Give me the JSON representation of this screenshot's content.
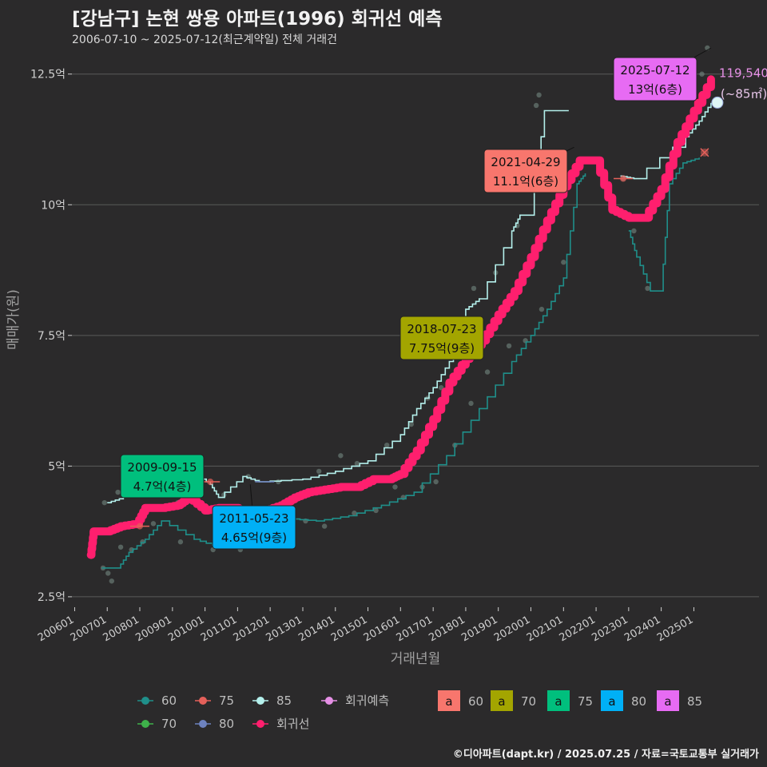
{
  "header": {
    "title": "[강남구] 논현 쌍용 아파트(1996) 회귀선 예측",
    "subtitle": "2006-07-10 ~ 2025-07-12(최근계약일) 전체 거래건"
  },
  "footer": {
    "credit": "©디아파트(dapt.kr) / 2025.07.25 / 자료=국토교통부 실거래가"
  },
  "colors": {
    "background": "#2b2a2b",
    "grid": "#5a5a5a",
    "text": "#d0d0d0",
    "s60": "#1f8f8a",
    "s70": "#3eb24a",
    "s75": "#e4605a",
    "s80": "#6d82bf",
    "s85": "#b4f0ec",
    "regression": "#ff1f6e",
    "forecast": "#e690e6",
    "lab60": "#f8766d",
    "lab70": "#a3a500",
    "lab75": "#00bf7d",
    "lab80": "#00b0f6",
    "lab85": "#e76bf3"
  },
  "chart_data": {
    "type": "line",
    "xlabel": "거래년월",
    "ylabel": "매매가(원)",
    "xlim": [
      "2005-12-01",
      "2027-01-01"
    ],
    "ylim": [
      2.3,
      13.0
    ],
    "y_ticks": [
      {
        "v": 2.5,
        "label": "2.5억"
      },
      {
        "v": 5,
        "label": "5억"
      },
      {
        "v": 7.5,
        "label": "7.5억"
      },
      {
        "v": 10,
        "label": "10억"
      },
      {
        "v": 12.5,
        "label": "12.5억"
      }
    ],
    "x_ticks": [
      {
        "d": "2006-01-01",
        "label": "200601"
      },
      {
        "d": "2007-01-01",
        "label": "200701"
      },
      {
        "d": "2008-01-01",
        "label": "200801"
      },
      {
        "d": "2009-01-01",
        "label": "200901"
      },
      {
        "d": "2010-01-01",
        "label": "201001"
      },
      {
        "d": "2011-01-01",
        "label": "201101"
      },
      {
        "d": "2012-01-01",
        "label": "201201"
      },
      {
        "d": "2013-01-01",
        "label": "201301"
      },
      {
        "d": "2014-01-01",
        "label": "201401"
      },
      {
        "d": "2015-01-01",
        "label": "201501"
      },
      {
        "d": "2016-01-01",
        "label": "201601"
      },
      {
        "d": "2017-01-01",
        "label": "201701"
      },
      {
        "d": "2018-01-01",
        "label": "201801"
      },
      {
        "d": "2019-01-01",
        "label": "201901"
      },
      {
        "d": "2020-01-01",
        "label": "202001"
      },
      {
        "d": "2021-01-01",
        "label": "202101"
      },
      {
        "d": "2022-01-01",
        "label": "202201"
      },
      {
        "d": "2023-01-01",
        "label": "202301"
      },
      {
        "d": "2024-01-01",
        "label": "202401"
      },
      {
        "d": "2025-01-01",
        "label": "202501"
      }
    ],
    "grid": true,
    "series": [
      {
        "key": "regression",
        "name": "회귀선",
        "points": [
          [
            "2006-07-01",
            3.3
          ],
          [
            "2006-08-01",
            3.75
          ],
          [
            "2007-01-01",
            3.75
          ],
          [
            "2007-06-01",
            3.85
          ],
          [
            "2007-12-01",
            3.9
          ],
          [
            "2008-03-01",
            4.2
          ],
          [
            "2008-09-01",
            4.2
          ],
          [
            "2009-03-01",
            4.25
          ],
          [
            "2009-07-01",
            4.4
          ],
          [
            "2010-01-01",
            4.15
          ],
          [
            "2010-06-01",
            4.2
          ],
          [
            "2010-12-01",
            4.2
          ],
          [
            "2011-06-01",
            3.9
          ],
          [
            "2011-11-01",
            4.15
          ],
          [
            "2012-05-01",
            4.25
          ],
          [
            "2012-10-01",
            4.4
          ],
          [
            "2013-03-01",
            4.5
          ],
          [
            "2013-09-01",
            4.55
          ],
          [
            "2014-03-01",
            4.6
          ],
          [
            "2014-09-01",
            4.6
          ],
          [
            "2015-03-01",
            4.75
          ],
          [
            "2015-09-01",
            4.75
          ],
          [
            "2016-01-01",
            4.85
          ],
          [
            "2016-07-01",
            5.3
          ],
          [
            "2017-01-01",
            5.9
          ],
          [
            "2017-07-01",
            6.6
          ],
          [
            "2018-01-01",
            7.05
          ],
          [
            "2018-07-01",
            7.4
          ],
          [
            "2019-01-01",
            7.9
          ],
          [
            "2019-07-01",
            8.35
          ],
          [
            "2020-01-01",
            9.0
          ],
          [
            "2020-07-01",
            9.7
          ],
          [
            "2021-01-01",
            10.35
          ],
          [
            "2021-07-01",
            10.85
          ],
          [
            "2022-01-01",
            10.85
          ],
          [
            "2022-07-01",
            9.9
          ],
          [
            "2023-01-01",
            9.75
          ],
          [
            "2023-07-01",
            9.75
          ],
          [
            "2024-01-01",
            10.3
          ],
          [
            "2024-07-01",
            11.2
          ],
          [
            "2025-01-01",
            11.8
          ],
          [
            "2025-07-12",
            12.4
          ]
        ]
      },
      {
        "key": "s60",
        "name": "60",
        "points": [
          [
            "2006-11-01",
            3.05
          ],
          [
            "2007-05-01",
            3.05
          ],
          [
            "2007-09-01",
            3.35
          ],
          [
            "2008-03-01",
            3.6
          ],
          [
            "2008-09-01",
            3.95
          ],
          [
            "2009-09-01",
            3.6
          ],
          [
            "2010-06-01",
            3.45
          ],
          [
            "2011-03-01",
            3.5
          ],
          [
            "2011-09-01",
            3.9
          ],
          [
            "2012-06-01",
            4.0
          ],
          [
            "2013-06-01",
            3.95
          ],
          [
            "2014-06-01",
            4.05
          ],
          [
            "2015-06-01",
            4.25
          ],
          [
            "2016-06-01",
            4.5
          ],
          [
            "2017-06-01",
            5.2
          ],
          [
            "2018-06-01",
            6.1
          ],
          [
            "2019-06-01",
            7.0
          ],
          [
            "2020-01-01",
            7.5
          ],
          [
            "2020-07-01",
            8.0
          ],
          [
            "2021-01-01",
            8.6
          ],
          [
            "2021-06-01",
            10.4
          ],
          [
            "2021-09-01",
            10.6
          ]
        ]
      },
      {
        "key": "s60b",
        "name": "60",
        "points": [
          [
            "2023-01-01",
            9.5
          ],
          [
            "2023-04-01",
            9.0
          ],
          [
            "2023-09-01",
            8.35
          ],
          [
            "2024-01-01",
            8.35
          ],
          [
            "2024-04-01",
            10.4
          ],
          [
            "2024-09-01",
            10.8
          ],
          [
            "2025-03-01",
            10.9
          ]
        ]
      },
      {
        "key": "s85",
        "name": "85",
        "points": [
          [
            "2007-01-01",
            4.3
          ],
          [
            "2007-07-01",
            4.4
          ],
          [
            "2008-01-01",
            4.55
          ],
          [
            "2008-07-01",
            4.85
          ],
          [
            "2009-03-01",
            5.0
          ],
          [
            "2009-09-01",
            4.85
          ],
          [
            "2010-03-01",
            4.65
          ],
          [
            "2010-06-01",
            4.4
          ],
          [
            "2011-03-01",
            4.8
          ],
          [
            "2011-09-01",
            4.7
          ],
          [
            "2013-01-01",
            4.75
          ],
          [
            "2014-01-01",
            4.9
          ],
          [
            "2015-01-01",
            5.1
          ],
          [
            "2016-01-01",
            5.6
          ],
          [
            "2016-07-01",
            6.1
          ],
          [
            "2017-01-01",
            6.5
          ],
          [
            "2017-07-01",
            7.0
          ],
          [
            "2018-01-01",
            8.0
          ],
          [
            "2018-06-01",
            8.2
          ],
          [
            "2019-06-01",
            9.5
          ],
          [
            "2019-09-01",
            9.8
          ],
          [
            "2020-01-01",
            9.8
          ],
          [
            "2020-06-01",
            11.8
          ],
          [
            "2021-03-01",
            11.8
          ]
        ]
      },
      {
        "key": "s85b",
        "name": "85",
        "points": [
          [
            "2022-10-01",
            10.55
          ],
          [
            "2023-03-01",
            10.5
          ],
          [
            "2024-10-01",
            11.3
          ],
          [
            "2025-03-01",
            11.6
          ],
          [
            "2025-07-12",
            11.95
          ]
        ]
      }
    ],
    "scatter": [
      [
        "2006-11-15",
        3.05
      ],
      [
        "2007-01-10",
        2.95
      ],
      [
        "2007-02-20",
        2.8
      ],
      [
        "2007-06-01",
        3.45
      ],
      [
        "2007-10-01",
        3.4
      ],
      [
        "2008-02-01",
        3.55
      ],
      [
        "2008-06-01",
        3.9
      ],
      [
        "2009-04-01",
        3.55
      ],
      [
        "2010-04-01",
        3.4
      ],
      [
        "2010-09-01",
        3.6
      ],
      [
        "2011-02-01",
        3.4
      ],
      [
        "2011-08-01",
        3.6
      ],
      [
        "2012-03-01",
        4.0
      ],
      [
        "2013-02-01",
        3.95
      ],
      [
        "2013-09-01",
        3.85
      ],
      [
        "2014-08-01",
        4.1
      ],
      [
        "2015-04-01",
        4.15
      ],
      [
        "2016-02-01",
        4.4
      ],
      [
        "2016-09-01",
        4.6
      ],
      [
        "2017-02-01",
        4.7
      ],
      [
        "2017-09-01",
        5.4
      ],
      [
        "2018-03-01",
        6.2
      ],
      [
        "2018-09-01",
        6.8
      ],
      [
        "2019-05-01",
        7.3
      ],
      [
        "2019-11-01",
        7.4
      ],
      [
        "2020-05-01",
        8.0
      ],
      [
        "2021-01-01",
        8.9
      ],
      [
        "2023-03-01",
        9.5
      ],
      [
        "2023-08-01",
        8.4
      ],
      [
        "2006-12-01",
        4.3
      ],
      [
        "2007-05-01",
        4.5
      ],
      [
        "2008-07-01",
        4.7
      ],
      [
        "2009-04-01",
        5.0
      ],
      [
        "2009-11-01",
        4.75
      ],
      [
        "2010-08-01",
        4.45
      ],
      [
        "2011-05-01",
        4.8
      ],
      [
        "2013-07-01",
        4.9
      ],
      [
        "2014-03-01",
        5.2
      ],
      [
        "2014-09-01",
        5.05
      ],
      [
        "2015-08-01",
        5.4
      ],
      [
        "2016-05-01",
        5.8
      ],
      [
        "2016-11-01",
        6.3
      ],
      [
        "2017-04-01",
        6.5
      ],
      [
        "2017-10-01",
        7.4
      ],
      [
        "2018-04-01",
        8.4
      ],
      [
        "2018-12-01",
        8.7
      ],
      [
        "2019-08-01",
        9.6
      ],
      [
        "2020-03-01",
        11.9
      ],
      [
        "2020-04-01",
        12.1
      ],
      [
        "2020-07-01",
        10.8
      ],
      [
        "2022-11-01",
        10.5
      ],
      [
        "2025-04-01",
        12.5
      ],
      [
        "2025-06-01",
        13.0
      ],
      [
        "2009-03-01",
        4.3
      ],
      [
        "2012-04-01",
        4.7
      ],
      [
        "2015-11-01",
        4.6
      ]
    ],
    "markers": {
      "s75": [
        [
          "2008-01-01",
          3.85
        ],
        [
          "2010-03-01",
          4.7
        ],
        [
          "2022-11-01",
          10.5
        ]
      ],
      "s80": [
        [
          "2011-11-01",
          4.7
        ]
      ],
      "s75x": [
        [
          "2025-05-01",
          11.0
        ]
      ],
      "forecast": [
        "2025-07-12",
        11.954
      ]
    },
    "annotations": [
      {
        "key": "lab75",
        "date": "2009-09-15",
        "line1": "2009-09-15",
        "line2": "4.7억(4층)",
        "px": [
          203,
          596
        ],
        "target": [
          "2009-09-15",
          4.7
        ]
      },
      {
        "key": "lab80",
        "date": "2011-05-23",
        "line1": "2011-05-23",
        "line2": "4.65억(9층)",
        "px": [
          318,
          660
        ],
        "target": [
          "2011-05-23",
          4.65
        ]
      },
      {
        "key": "lab70",
        "date": "2018-07-23",
        "line1": "2018-07-23",
        "line2": "7.75억(9층)",
        "px": [
          553,
          423
        ],
        "target": [
          "2018-07-23",
          7.75
        ]
      },
      {
        "key": "lab60",
        "date": "2021-04-29",
        "line1": "2021-04-29",
        "line2": "11.1억(6층)",
        "px": [
          658,
          214
        ],
        "target": [
          "2021-04-29",
          11.1
        ]
      },
      {
        "key": "lab85",
        "date": "2025-07-12",
        "line1": "2025-07-12",
        "line2": "13억(6층)",
        "px": [
          820,
          99
        ],
        "target": [
          "2025-07-12",
          13.0
        ]
      }
    ],
    "forecast_label": {
      "value": "119,540",
      "unit": "(~85㎡)"
    },
    "legend": {
      "placement": "bottom",
      "line_items": [
        {
          "key": "s60",
          "label": "60"
        },
        {
          "key": "s75",
          "label": "75"
        },
        {
          "key": "s85",
          "label": "85"
        },
        {
          "key": "forecast",
          "label": "회귀예측"
        },
        {
          "key": "s70",
          "label": "70"
        },
        {
          "key": "s80",
          "label": "80"
        },
        {
          "key": "regression",
          "label": "회귀선"
        }
      ],
      "box_glyph": "a",
      "box_items": [
        {
          "key": "lab60",
          "label": "60"
        },
        {
          "key": "lab70",
          "label": "70"
        },
        {
          "key": "lab75",
          "label": "75"
        },
        {
          "key": "lab80",
          "label": "80"
        },
        {
          "key": "lab85",
          "label": "85"
        }
      ]
    }
  }
}
